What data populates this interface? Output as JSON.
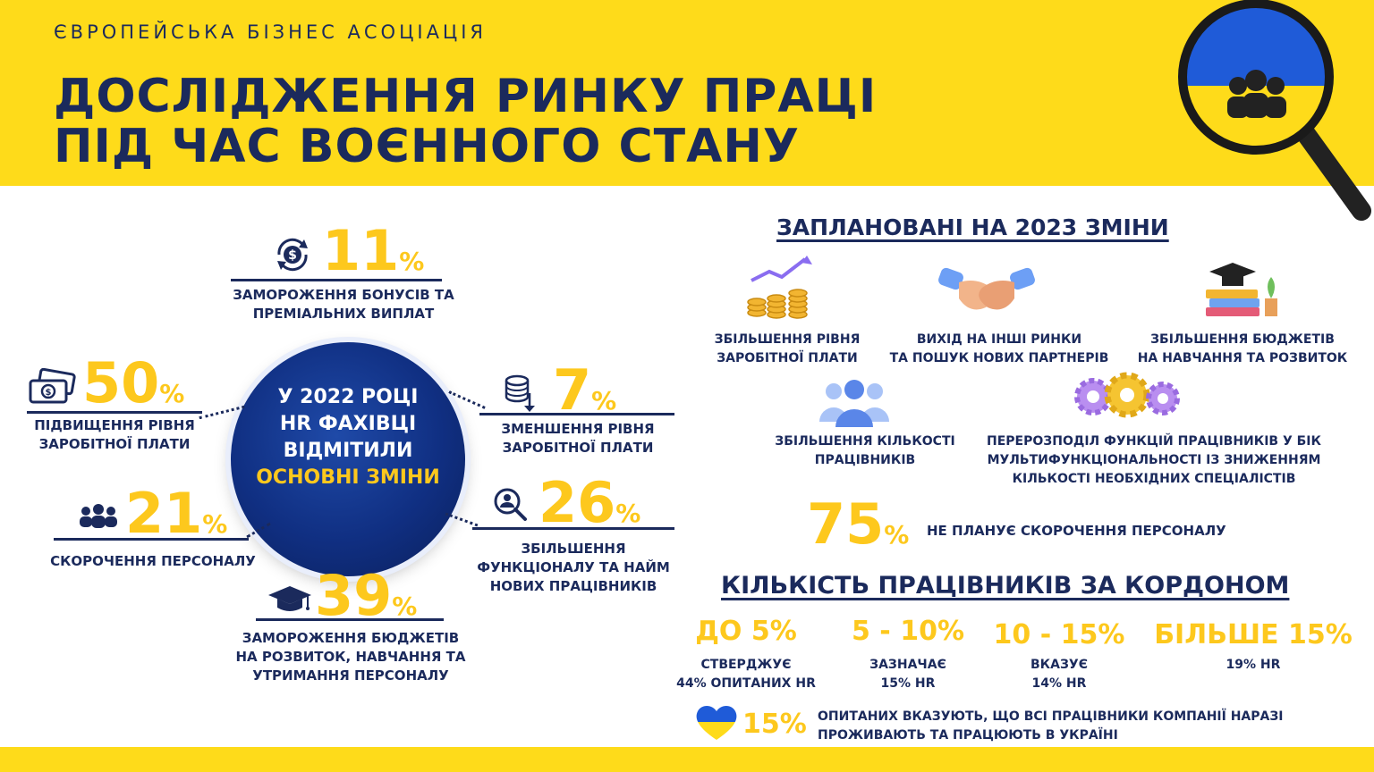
{
  "header": {
    "org": "ЄВРОПЕЙСЬКА БІЗНЕС АСОЦІАЦІЯ",
    "title_line1": "ДОСЛІДЖЕННЯ РИНКУ ПРАЦІ",
    "title_line2": "ПІД ЧАС ВОЄННОГО СТАНУ"
  },
  "center": {
    "line1": "У 2022 РОЦІ",
    "line2": "HR ФАХІВЦІ",
    "line3": "ВІДМІТИЛИ",
    "line4": "ОСНОВНІ ЗМІНИ"
  },
  "changes_2022": [
    {
      "value": "11",
      "unit": "%",
      "line1": "ЗАМОРОЖЕННЯ БОНУСІВ ТА",
      "line2": "ПРЕМІАЛЬНИХ ВИПЛАТ",
      "icon": "dollar-refresh-icon"
    },
    {
      "value": "50",
      "unit": "%",
      "line1": "ПІДВИЩЕННЯ РІВНЯ",
      "line2": "ЗАРОБІТНОЇ ПЛАТИ",
      "icon": "money-bills-icon"
    },
    {
      "value": "7",
      "unit": "%",
      "line1": "ЗМЕНШЕННЯ РІВНЯ",
      "line2": "ЗАРОБІТНОЇ ПЛАТИ",
      "icon": "coins-down-icon"
    },
    {
      "value": "21",
      "unit": "%",
      "line1": "СКОРОЧЕННЯ ПЕРСОНАЛУ",
      "line2": "",
      "icon": "people-group-icon"
    },
    {
      "value": "26",
      "unit": "%",
      "line1": "ЗБІЛЬШЕННЯ",
      "line2": "ФУНКЦІОНАЛУ  ТА НАЙМ",
      "line3": "НОВИХ  ПРАЦІВНИКІВ",
      "icon": "person-search-icon"
    },
    {
      "value": "39",
      "unit": "%",
      "line1": "ЗАМОРОЖЕННЯ БЮДЖЕТІВ",
      "line2": "НА РОЗВИТОК, НАВЧАННЯ ТА",
      "line3": "УТРИМАННЯ ПЕРСОНАЛУ",
      "icon": "graduation-cap-icon"
    }
  ],
  "planned": {
    "title": "ЗАПЛАНОВАНІ НА 2023 ЗМІНИ",
    "items": [
      {
        "line1": "ЗБІЛЬШЕННЯ РІВНЯ",
        "line2": "ЗАРОБІТНОЇ ПЛАТИ",
        "icon": "coins-growth-icon"
      },
      {
        "line1": "ВИХІД НА ІНШІ  РИНКИ",
        "line2": "ТА ПОШУК  НОВИХ ПАРТНЕРІВ",
        "icon": "handshake-icon"
      },
      {
        "line1": "ЗБІЛЬШЕННЯ БЮДЖЕТІВ",
        "line2": "НА НАВЧАННЯ  ТА РОЗВИТОК",
        "icon": "books-cap-icon"
      },
      {
        "line1": "ЗБІЛЬШЕННЯ КІЛЬКОСТІ",
        "line2": "ПРАЦІВНИКІВ",
        "icon": "team-icon"
      },
      {
        "line1": "ПЕРЕРОЗПОДІЛ ФУНКЦІЙ ПРАЦІВНИКІВ У БІК",
        "line2": "МУЛЬТИФУНКЦІОНАЛЬНОСТІ ІЗ ЗНИЖЕННЯМ",
        "line3": "КІЛЬКОСТІ НЕОБХІДНИХ СПЕЦІАЛІСТІВ",
        "icon": "gears-icon"
      }
    ],
    "no_cut_value": "75",
    "no_cut_unit": "%",
    "no_cut_text": "НЕ ПЛАНУЄ СКОРОЧЕННЯ ПЕРСОНАЛУ"
  },
  "abroad": {
    "title": "КІЛЬКІСТЬ ПРАЦІВНИКІВ ЗА КОРДОНОМ",
    "groups": [
      {
        "range": "ДО 5%",
        "line1": "СТВЕРДЖУЄ",
        "line2": "44% ОПИТАНИХ HR"
      },
      {
        "range": "5 - 10%",
        "line1": "ЗАЗНАЧАЄ",
        "line2": "15% HR"
      },
      {
        "range": "10 - 15%",
        "line1": "ВКАЗУЄ",
        "line2": "14% HR"
      },
      {
        "range": "БІЛЬШЕ 15%",
        "line1": "19% HR",
        "line2": ""
      }
    ],
    "ukraine_value": "15%",
    "ukraine_line1": "ОПИТАНИХ ВКАЗУЮТЬ, ЩО ВСІ ПРАЦІВНИКИ КОМПАНІЇ НАРАЗІ",
    "ukraine_line2": "ПРОЖИВАЮТЬ ТА ПРАЦЮЮТЬ В УКРАЇНІ"
  },
  "colors": {
    "navy": "#1b2a5c",
    "yellow": "#fedb1a",
    "gold": "#fdc81d",
    "blue": "#1f4aa8"
  }
}
